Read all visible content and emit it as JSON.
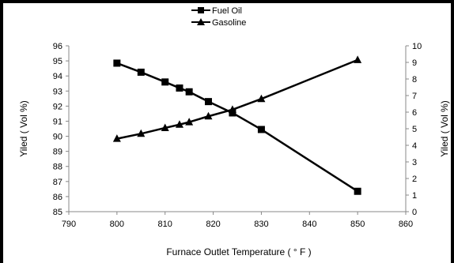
{
  "chart_data": {
    "type": "line",
    "title": "",
    "xlabel": "Furnace Outlet Temperature ( ° F )",
    "ylabel_left": "Yiled ( Vol %)",
    "ylabel_right": "Yiled ( Vol %)",
    "xlim": [
      790,
      860
    ],
    "ylim_left": [
      85,
      96
    ],
    "ylim_right": [
      0,
      10
    ],
    "x_ticks": [
      "790",
      "800",
      "810",
      "820",
      "830",
      "840",
      "850",
      "860"
    ],
    "y_left_ticks": [
      "85",
      "86",
      "87",
      "88",
      "89",
      "90",
      "91",
      "92",
      "93",
      "94",
      "95",
      "96"
    ],
    "y_right_ticks": [
      "0",
      "1",
      "2",
      "3",
      "4",
      "5",
      "6",
      "7",
      "8",
      "9",
      "10"
    ],
    "grid": false,
    "legend_position": "top-center",
    "series": [
      {
        "name": "Fuel Oil",
        "axis": "left",
        "marker": "square",
        "color": "#000000",
        "points": [
          [
            800,
            94.85
          ],
          [
            805,
            94.25
          ],
          [
            810,
            93.6
          ],
          [
            813,
            93.2
          ],
          [
            815,
            92.95
          ],
          [
            819,
            92.3
          ],
          [
            824,
            91.55
          ],
          [
            830,
            90.45
          ],
          [
            850,
            86.35
          ]
        ]
      },
      {
        "name": "Gasoline",
        "axis": "right",
        "marker": "triangle",
        "color": "#000000",
        "points": [
          [
            800,
            4.4
          ],
          [
            805,
            4.7
          ],
          [
            810,
            5.05
          ],
          [
            813,
            5.25
          ],
          [
            815,
            5.4
          ],
          [
            819,
            5.75
          ],
          [
            824,
            6.15
          ],
          [
            830,
            6.8
          ],
          [
            850,
            9.15
          ]
        ]
      }
    ]
  }
}
